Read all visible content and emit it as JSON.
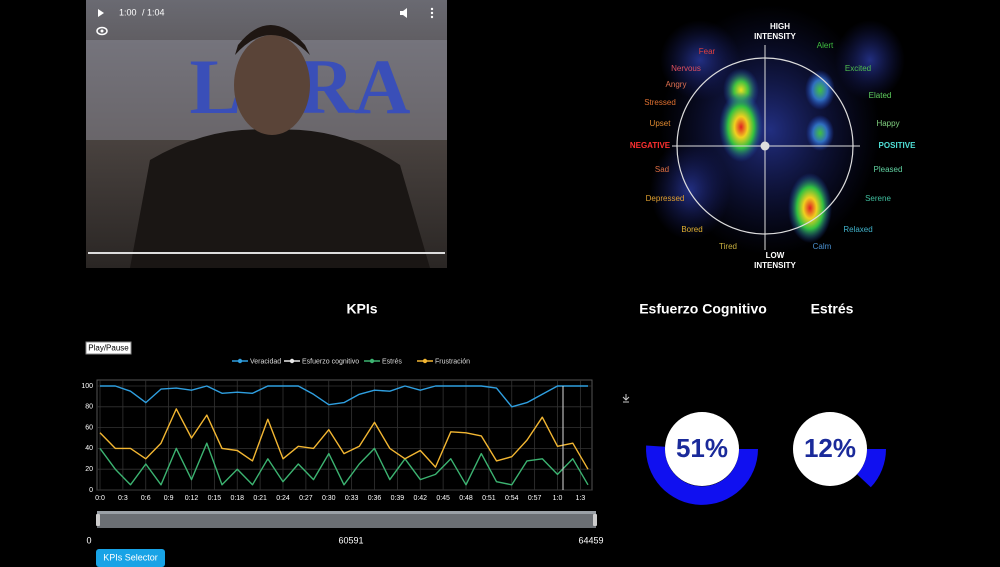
{
  "video": {
    "time": "1:00",
    "duration": "/ 1:04",
    "background_text": "LARA"
  },
  "emotion_wheel": {
    "high": [
      "HIGH",
      "INTENSITY"
    ],
    "low": [
      "LOW",
      "INTENSITY"
    ],
    "negative": "NEGATIVE",
    "positive": "POSITIVE",
    "emotions": [
      {
        "label": "Fear",
        "color": "#e04040"
      },
      {
        "label": "Nervous",
        "color": "#e05060"
      },
      {
        "label": "Angry",
        "color": "#e07050"
      },
      {
        "label": "Stressed",
        "color": "#e07030"
      },
      {
        "label": "Upset",
        "color": "#e08a30"
      },
      {
        "label": "Sad",
        "color": "#e07040"
      },
      {
        "label": "Depressed",
        "color": "#e0a030"
      },
      {
        "label": "Bored",
        "color": "#e0b030"
      },
      {
        "label": "Tired",
        "color": "#c8b040"
      },
      {
        "label": "Calm",
        "color": "#4a90d0"
      },
      {
        "label": "Relaxed",
        "color": "#40b0c8"
      },
      {
        "label": "Serene",
        "color": "#40c0a0"
      },
      {
        "label": "Pleased",
        "color": "#60d0a0"
      },
      {
        "label": "Happy",
        "color": "#80d080"
      },
      {
        "label": "Elated",
        "color": "#60d060"
      },
      {
        "label": "Excited",
        "color": "#50c050"
      },
      {
        "label": "Alert",
        "color": "#40c040"
      }
    ]
  },
  "kpis_title": "KPIs",
  "play_button": "Play/Pause",
  "chart_data": {
    "type": "line",
    "grid": true,
    "x": [
      0,
      2,
      4,
      6,
      8,
      10,
      12,
      14,
      16,
      18,
      20,
      22,
      24,
      26,
      28,
      30,
      32,
      34,
      36,
      38,
      40,
      42,
      44,
      46,
      48,
      50,
      52,
      54,
      56,
      58,
      60,
      62,
      64
    ],
    "xlim": [
      0,
      64
    ],
    "xticks": [
      {
        "value": 0,
        "label": "0:0"
      },
      {
        "value": 3,
        "label": "0:3"
      },
      {
        "value": 6,
        "label": "0:6"
      },
      {
        "value": 9,
        "label": "0:9"
      },
      {
        "value": 12,
        "label": "0:12"
      },
      {
        "value": 15,
        "label": "0:15"
      },
      {
        "value": 18,
        "label": "0:18"
      },
      {
        "value": 21,
        "label": "0:21"
      },
      {
        "value": 24,
        "label": "0:24"
      },
      {
        "value": 27,
        "label": "0:27"
      },
      {
        "value": 30,
        "label": "0:30"
      },
      {
        "value": 33,
        "label": "0:33"
      },
      {
        "value": 36,
        "label": "0:36"
      },
      {
        "value": 39,
        "label": "0:39"
      },
      {
        "value": 42,
        "label": "0:42"
      },
      {
        "value": 45,
        "label": "0:45"
      },
      {
        "value": 48,
        "label": "0:48"
      },
      {
        "value": 51,
        "label": "0:51"
      },
      {
        "value": 54,
        "label": "0:54"
      },
      {
        "value": 57,
        "label": "0:57"
      },
      {
        "value": 60,
        "label": "1:0"
      },
      {
        "value": 63,
        "label": "1:3"
      }
    ],
    "ylim": [
      0,
      100
    ],
    "yticks": [
      0,
      20,
      40,
      60,
      80,
      100
    ],
    "series": [
      {
        "name": "Veracidad",
        "color": "#2f9fe0",
        "values": [
          100,
          100,
          95,
          84,
          97,
          98,
          96,
          100,
          93,
          94,
          93,
          100,
          100,
          100,
          92,
          82,
          84,
          92,
          96,
          95,
          100,
          96,
          100,
          100,
          100,
          100,
          98,
          80,
          84,
          92,
          100,
          100,
          100
        ]
      },
      {
        "name": "Esfuerzo cognitivo",
        "color": "#e8e8e8",
        "values": [
          null,
          null,
          null,
          null,
          null,
          null,
          null,
          null,
          null,
          null,
          null,
          null,
          null,
          null,
          null,
          null,
          null,
          null,
          null,
          null,
          null,
          null,
          null,
          null,
          null,
          null,
          null,
          null,
          null,
          null,
          null,
          null,
          null
        ]
      },
      {
        "name": "Estrés",
        "color": "#3cb371",
        "values": [
          40,
          20,
          5,
          25,
          5,
          40,
          10,
          45,
          5,
          20,
          5,
          30,
          8,
          25,
          10,
          35,
          5,
          25,
          40,
          10,
          30,
          10,
          15,
          30,
          5,
          35,
          8,
          5,
          28,
          30,
          15,
          30,
          5
        ]
      },
      {
        "name": "Frustración",
        "color": "#f2b632",
        "values": [
          55,
          40,
          40,
          30,
          45,
          78,
          50,
          72,
          40,
          38,
          28,
          68,
          30,
          42,
          40,
          58,
          35,
          42,
          65,
          40,
          30,
          38,
          22,
          56,
          55,
          52,
          28,
          32,
          48,
          70,
          42,
          45,
          20
        ]
      }
    ]
  },
  "slider": {
    "start": "0",
    "mid": "60591",
    "end": "64459"
  },
  "selector_button": "KPIs Selector",
  "gauges": [
    {
      "title": "Esfuerzo Cognitivo",
      "value": 51,
      "value_label": "51%"
    },
    {
      "title": "Estrés",
      "value": 12,
      "value_label": "12%"
    }
  ]
}
